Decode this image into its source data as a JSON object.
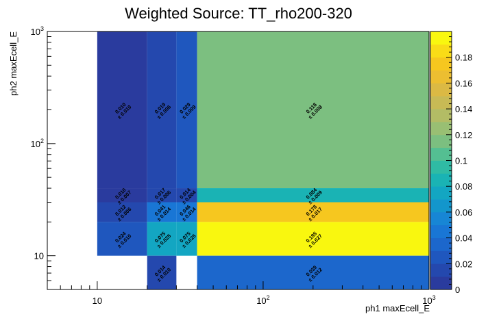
{
  "chart_data": {
    "type": "heatmap",
    "title": "Weighted Source: TT_rho200-320",
    "xlabel": "ph1 maxEcell_E",
    "ylabel": "ph2 maxEcell_E",
    "xscale": "log",
    "yscale": "log",
    "xlim": [
      5,
      1000
    ],
    "ylim": [
      5,
      1000
    ],
    "zlim": [
      0,
      0.2
    ],
    "x_ticks": [
      {
        "value": 10,
        "label": "10"
      },
      {
        "value": 100,
        "label": "10",
        "exp": "2"
      },
      {
        "value": 1000,
        "label": "10",
        "exp": "3"
      }
    ],
    "y_ticks": [
      {
        "value": 10,
        "label": "10"
      },
      {
        "value": 100,
        "label": "10",
        "exp": "2"
      },
      {
        "value": 1000,
        "label": "10",
        "exp": "3"
      }
    ],
    "z_ticks": [
      "0",
      "0.02",
      "0.04",
      "0.06",
      "0.08",
      "0.1",
      "0.12",
      "0.14",
      "0.16",
      "0.18"
    ],
    "z_tick_values": [
      0,
      0.02,
      0.04,
      0.06,
      0.08,
      0.1,
      0.12,
      0.14,
      0.16,
      0.18
    ],
    "cells": [
      {
        "x0": 10,
        "x1": 20,
        "y0": 40,
        "y1": 1000,
        "value": 0.01,
        "label": "0.010",
        "error": "± 0.010"
      },
      {
        "x0": 20,
        "x1": 30,
        "y0": 40,
        "y1": 1000,
        "value": 0.019,
        "label": "0.019",
        "error": "± 0.006"
      },
      {
        "x0": 30,
        "x1": 40,
        "y0": 40,
        "y1": 1000,
        "value": 0.029,
        "label": "0.029",
        "error": "± 0.009"
      },
      {
        "x0": 40,
        "x1": 1000,
        "y0": 40,
        "y1": 1000,
        "value": 0.118,
        "label": "0.118",
        "error": "± 0.008"
      },
      {
        "x0": 10,
        "x1": 20,
        "y0": 30,
        "y1": 40,
        "value": 0.01,
        "label": "0.010",
        "error": "± 0.007"
      },
      {
        "x0": 20,
        "x1": 30,
        "y0": 30,
        "y1": 40,
        "value": 0.017,
        "label": "0.017",
        "error": "± 0.006"
      },
      {
        "x0": 30,
        "x1": 40,
        "y0": 30,
        "y1": 40,
        "value": 0.014,
        "label": "0.014",
        "error": "± 0.004"
      },
      {
        "x0": 40,
        "x1": 1000,
        "y0": 30,
        "y1": 40,
        "value": 0.084,
        "label": "0.084",
        "error": "± 0.009"
      },
      {
        "x0": 10,
        "x1": 20,
        "y0": 20,
        "y1": 30,
        "value": 0.012,
        "label": "0.012",
        "error": "± 0.006"
      },
      {
        "x0": 20,
        "x1": 30,
        "y0": 20,
        "y1": 30,
        "value": 0.041,
        "label": "0.041",
        "error": "± 0.014"
      },
      {
        "x0": 30,
        "x1": 40,
        "y0": 20,
        "y1": 30,
        "value": 0.046,
        "label": "0.046",
        "error": "± 0.014"
      },
      {
        "x0": 40,
        "x1": 1000,
        "y0": 20,
        "y1": 30,
        "value": 0.178,
        "label": "0.178",
        "error": "± 0.017"
      },
      {
        "x0": 10,
        "x1": 20,
        "y0": 10,
        "y1": 20,
        "value": 0.024,
        "label": "0.024",
        "error": "± 0.010"
      },
      {
        "x0": 20,
        "x1": 30,
        "y0": 10,
        "y1": 20,
        "value": 0.075,
        "label": "0.075",
        "error": "± 0.025"
      },
      {
        "x0": 30,
        "x1": 40,
        "y0": 10,
        "y1": 20,
        "value": 0.075,
        "label": "0.075",
        "error": "± 0.025"
      },
      {
        "x0": 40,
        "x1": 1000,
        "y0": 10,
        "y1": 20,
        "value": 0.195,
        "label": "0.195",
        "error": "± 0.027"
      },
      {
        "x0": 20,
        "x1": 30,
        "y0": 5,
        "y1": 10,
        "value": 0.014,
        "label": "0.014",
        "error": "± 0.010"
      },
      {
        "x0": 40,
        "x1": 1000,
        "y0": 5,
        "y1": 10,
        "value": 0.039,
        "label": "0.039",
        "error": "± 0.012"
      }
    ],
    "palette": [
      "#2a3b9e",
      "#2448ae",
      "#1f57be",
      "#1c67cc",
      "#1976d5",
      "#1786d5",
      "#1396cc",
      "#13a6c2",
      "#1ab3b4",
      "#2fbba4",
      "#54bf92",
      "#7cbf80",
      "#99bf73",
      "#b3bc65",
      "#c8ba55",
      "#dbb944",
      "#ecbe31",
      "#f6c71f",
      "#f9dc17",
      "#f9f70f"
    ]
  }
}
